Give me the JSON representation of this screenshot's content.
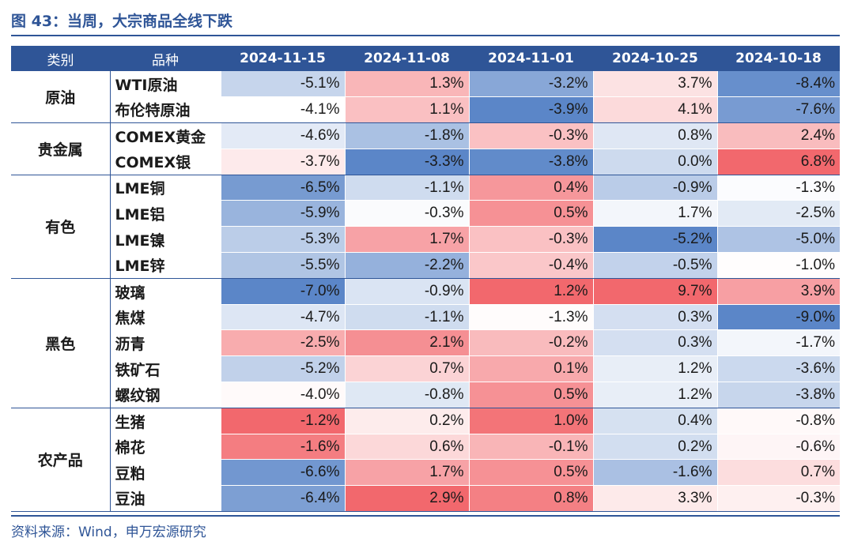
{
  "title": "图 43：当周，大宗商品全线下跌",
  "source": "资料来源：Wind，申万宏源研究",
  "headers": [
    "类别",
    "品种",
    "2024-11-15",
    "2024-11-08",
    "2024-11-01",
    "2024-10-25",
    "2024-10-18"
  ],
  "colors": {
    "brand": "#2f5597",
    "negative_max": "#5b86c8",
    "positive_max": "#f2686d"
  },
  "groups": [
    {
      "category": "原油",
      "rows": [
        {
          "item": "WTI原油",
          "values": [
            "-5.1%",
            "1.3%",
            "-3.2%",
            "3.7%",
            "-8.4%"
          ]
        },
        {
          "item": "布伦特原油",
          "values": [
            "-4.1%",
            "1.1%",
            "-3.9%",
            "4.1%",
            "-7.6%"
          ]
        }
      ]
    },
    {
      "category": "贵金属",
      "rows": [
        {
          "item": "COMEX黄金",
          "values": [
            "-4.6%",
            "-1.8%",
            "-0.3%",
            "0.8%",
            "2.4%"
          ]
        },
        {
          "item": "COMEX银",
          "values": [
            "-3.7%",
            "-3.3%",
            "-3.8%",
            "0.0%",
            "6.8%"
          ]
        }
      ]
    },
    {
      "category": "有色",
      "rows": [
        {
          "item": "LME铜",
          "values": [
            "-6.5%",
            "-1.1%",
            "0.4%",
            "-0.9%",
            "-1.3%"
          ]
        },
        {
          "item": "LME铝",
          "values": [
            "-5.9%",
            "-0.3%",
            "0.5%",
            "1.7%",
            "-2.5%"
          ]
        },
        {
          "item": "LME镍",
          "values": [
            "-5.3%",
            "1.7%",
            "-0.3%",
            "-5.2%",
            "-5.0%"
          ]
        },
        {
          "item": "LME锌",
          "values": [
            "-5.5%",
            "-2.2%",
            "-0.4%",
            "-0.5%",
            "-1.0%"
          ]
        }
      ]
    },
    {
      "category": "黑色",
      "rows": [
        {
          "item": "玻璃",
          "values": [
            "-7.0%",
            "-0.9%",
            "1.2%",
            "9.7%",
            "3.9%"
          ]
        },
        {
          "item": "焦煤",
          "values": [
            "-4.7%",
            "-1.1%",
            "-1.3%",
            "0.3%",
            "-9.0%"
          ]
        },
        {
          "item": "沥青",
          "values": [
            "-2.5%",
            "2.1%",
            "-0.2%",
            "0.3%",
            "-1.7%"
          ]
        },
        {
          "item": "铁矿石",
          "values": [
            "-5.2%",
            "0.7%",
            "0.1%",
            "1.2%",
            "-3.6%"
          ]
        },
        {
          "item": "螺纹钢",
          "values": [
            "-4.0%",
            "-0.8%",
            "0.5%",
            "1.2%",
            "-3.8%"
          ]
        }
      ]
    },
    {
      "category": "农产品",
      "rows": [
        {
          "item": "生猪",
          "values": [
            "-1.2%",
            "0.2%",
            "1.0%",
            "0.4%",
            "-0.8%"
          ]
        },
        {
          "item": "棉花",
          "values": [
            "-1.6%",
            "0.6%",
            "-0.1%",
            "0.2%",
            "-0.6%"
          ]
        },
        {
          "item": "豆粕",
          "values": [
            "-6.6%",
            "1.7%",
            "0.5%",
            "-1.6%",
            "0.7%"
          ]
        },
        {
          "item": "豆油",
          "values": [
            "-6.4%",
            "2.9%",
            "0.8%",
            "3.3%",
            "-0.3%"
          ]
        }
      ]
    }
  ]
}
